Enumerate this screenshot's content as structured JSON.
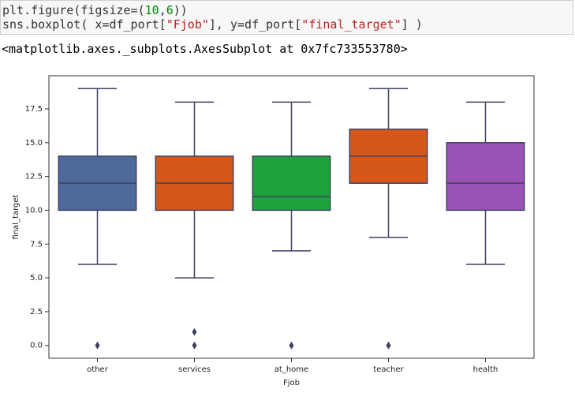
{
  "code": [
    [
      {
        "text": "plt.figure(figsize=(",
        "color": "#333333"
      },
      {
        "text": "10",
        "color": "#008800"
      },
      {
        "text": ",",
        "color": "#333333"
      },
      {
        "text": "6",
        "color": "#008800"
      },
      {
        "text": "))",
        "color": "#333333"
      }
    ],
    [
      {
        "text": "sns.boxplot( x=df_port[",
        "color": "#333333"
      },
      {
        "text": "\"Fjob\"",
        "color": "#ba2121"
      },
      {
        "text": "], y=df_port[",
        "color": "#333333"
      },
      {
        "text": "\"final_target\"",
        "color": "#ba2121"
      },
      {
        "text": "] )",
        "color": "#333333"
      }
    ]
  ],
  "output": "<matplotlib.axes._subplots.AxesSubplot at 0x7fc733553780>",
  "chart_data": {
    "type": "box",
    "xlabel": "Fjob",
    "ylabel": "final_target",
    "categories": [
      "other",
      "services",
      "at_home",
      "teacher",
      "health"
    ],
    "colors": [
      "#4c6a9c",
      "#d5581a",
      "#1ea33c",
      "#d5581a",
      "#9a52b6"
    ],
    "line_color": "#3d4160",
    "boxes": [
      {
        "whislo": 6,
        "q1": 10,
        "med": 12,
        "q3": 14,
        "whishi": 19,
        "fliers": [
          0
        ]
      },
      {
        "whislo": 5,
        "q1": 10,
        "med": 12,
        "q3": 14,
        "whishi": 18,
        "fliers": [
          0,
          1
        ]
      },
      {
        "whislo": 7,
        "q1": 10,
        "med": 11,
        "q3": 14,
        "whishi": 18,
        "fliers": [
          0
        ]
      },
      {
        "whislo": 8,
        "q1": 12,
        "med": 14,
        "q3": 16,
        "whishi": 19,
        "fliers": [
          0
        ]
      },
      {
        "whislo": 6,
        "q1": 10,
        "med": 12,
        "q3": 15,
        "whishi": 18,
        "fliers": []
      }
    ],
    "ylim": [
      -0.95,
      19.95
    ],
    "yticks": [
      {
        "value": 0,
        "label": "0.0"
      },
      2.5,
      {
        "value": 5,
        "label": "5.0"
      },
      7.5,
      {
        "value": 10,
        "label": "10.0"
      },
      12.5,
      {
        "value": 15,
        "label": "15.0"
      },
      17.5
    ],
    "grid": false
  }
}
